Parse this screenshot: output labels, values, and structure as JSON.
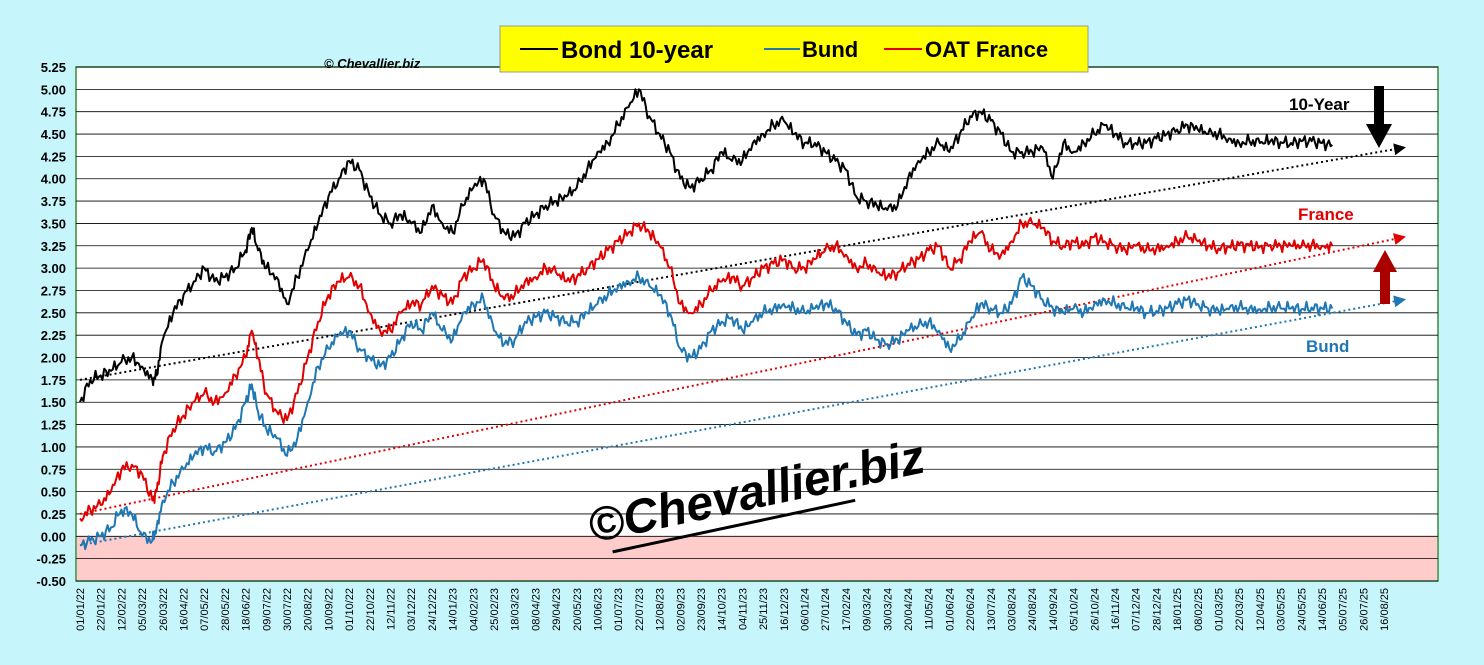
{
  "chart_data": {
    "type": "line",
    "copyright_small": "© Chevallier.biz",
    "watermark": "©Chevallier.biz",
    "legend": [
      {
        "label": "Bond 10-year",
        "color": "#000000"
      },
      {
        "label": "Bund",
        "color": "#1f77b4"
      },
      {
        "label": "OAT France",
        "color": "#e00000"
      }
    ],
    "annotations": {
      "ten_year": "10-Year",
      "france": "France",
      "bund": "Bund"
    },
    "ylim": [
      -0.5,
      5.25
    ],
    "y_ticks": [
      "5.25",
      "5.00",
      "4.75",
      "4.50",
      "4.25",
      "4.00",
      "3.75",
      "3.50",
      "3.25",
      "3.00",
      "2.75",
      "2.50",
      "2.25",
      "2.00",
      "1.75",
      "1.50",
      "1.25",
      "1.00",
      "0.75",
      "0.50",
      "0.25",
      "0.00",
      "-0.25",
      "-0.50"
    ],
    "x_ticks": [
      "01/01/22",
      "22/01/22",
      "12/02/22",
      "05/03/22",
      "26/03/22",
      "16/04/22",
      "07/05/22",
      "28/05/22",
      "18/06/22",
      "09/07/22",
      "30/07/22",
      "20/08/22",
      "10/09/22",
      "01/10/22",
      "22/10/22",
      "12/11/22",
      "03/12/22",
      "24/12/22",
      "14/01/23",
      "04/02/23",
      "25/02/23",
      "18/03/23",
      "08/04/23",
      "29/04/23",
      "20/05/23",
      "10/06/23",
      "01/07/23",
      "22/07/23",
      "12/08/23",
      "02/09/23",
      "23/09/23",
      "14/10/23",
      "04/11/23",
      "25/11/23",
      "16/12/23",
      "06/01/24",
      "27/01/24",
      "17/02/24",
      "09/03/24",
      "30/03/24",
      "20/04/24",
      "11/05/24",
      "01/06/24",
      "22/06/24",
      "13/07/24",
      "03/08/24",
      "24/08/24",
      "14/09/24",
      "05/10/24",
      "26/10/24",
      "16/11/24",
      "07/12/24",
      "28/12/24",
      "18/01/25",
      "08/02/25",
      "01/03/25",
      "22/03/25",
      "12/04/25",
      "03/05/25",
      "24/05/25",
      "14/06/25",
      "05/07/25",
      "26/07/25",
      "16/08/25"
    ],
    "series": [
      {
        "name": "Bond 10-year",
        "color": "#000000",
        "x": [
          0,
          0.5,
          1,
          1.5,
          2,
          2.5,
          3,
          3.5,
          3.7,
          4,
          4.5,
          5,
          5.5,
          6,
          6.5,
          7,
          7.5,
          8,
          8.3,
          8.6,
          9,
          9.5,
          10,
          10.5,
          11,
          11.5,
          12,
          12.5,
          13,
          13.5,
          14,
          14.5,
          15,
          15.5,
          16,
          16.5,
          17,
          17.5,
          18,
          18.5,
          19,
          19.5,
          20,
          20.5,
          21,
          21.5,
          22,
          22.5,
          23,
          23.5,
          24,
          24.5,
          25,
          25.5,
          26,
          26.5,
          27,
          27.5,
          28,
          28.5,
          29,
          29.5,
          30,
          30.5,
          31,
          31.5,
          32,
          32.5,
          33,
          33.5,
          34,
          34.5,
          35,
          35.5,
          36,
          36.5,
          37,
          37.5,
          38,
          38.5,
          39,
          39.5,
          40,
          40.5,
          41,
          41.5,
          42,
          42.5,
          43,
          43.5,
          44,
          44.5,
          45,
          45.5,
          46,
          46.5,
          47,
          47.5,
          48,
          48.5,
          49,
          49.5,
          50,
          50.5,
          51,
          51.5,
          52,
          52.5,
          53,
          53.5,
          54,
          54.5,
          55,
          55.5,
          56,
          56.5,
          57,
          57.5,
          58,
          58.5,
          59,
          59.5,
          60,
          60.5
        ],
        "y": [
          1.5,
          1.75,
          1.8,
          1.85,
          1.95,
          2.0,
          1.9,
          1.75,
          1.8,
          2.2,
          2.5,
          2.7,
          2.85,
          3.0,
          2.85,
          2.9,
          3.0,
          3.2,
          3.45,
          3.2,
          3.0,
          2.9,
          2.6,
          2.9,
          3.2,
          3.5,
          3.8,
          4.0,
          4.2,
          4.1,
          3.8,
          3.6,
          3.5,
          3.6,
          3.5,
          3.4,
          3.7,
          3.5,
          3.4,
          3.7,
          3.9,
          4.0,
          3.6,
          3.4,
          3.35,
          3.5,
          3.6,
          3.7,
          3.75,
          3.8,
          3.9,
          4.1,
          4.3,
          4.4,
          4.6,
          4.8,
          5.0,
          4.7,
          4.5,
          4.3,
          4.0,
          3.9,
          4.0,
          4.1,
          4.3,
          4.2,
          4.2,
          4.4,
          4.5,
          4.6,
          4.65,
          4.5,
          4.4,
          4.4,
          4.3,
          4.2,
          4.1,
          3.8,
          3.75,
          3.7,
          3.65,
          3.7,
          4.0,
          4.2,
          4.3,
          4.4,
          4.3,
          4.5,
          4.7,
          4.75,
          4.65,
          4.5,
          4.3,
          4.3,
          4.3,
          4.35,
          4.0,
          4.4,
          4.3,
          4.4,
          4.5,
          4.6,
          4.5,
          4.4,
          4.4,
          4.4,
          4.45,
          4.5,
          4.55,
          4.6,
          4.55,
          4.5,
          4.5,
          4.45,
          4.4,
          4.42,
          4.4,
          4.42,
          4.41,
          4.4,
          4.42,
          4.42,
          4.4,
          4.38
        ]
      },
      {
        "name": "OAT France",
        "color": "#e00000",
        "x": [
          0,
          0.5,
          1,
          1.5,
          2,
          2.5,
          3,
          3.5,
          3.7,
          4,
          4.5,
          5,
          5.5,
          6,
          6.5,
          7,
          7.5,
          8,
          8.3,
          8.6,
          9,
          9.5,
          10,
          10.5,
          11,
          11.5,
          12,
          12.5,
          13,
          13.5,
          14,
          14.5,
          15,
          15.5,
          16,
          16.5,
          17,
          17.5,
          18,
          18.5,
          19,
          19.5,
          20,
          20.5,
          21,
          21.5,
          22,
          22.5,
          23,
          23.5,
          24,
          24.5,
          25,
          25.5,
          26,
          26.5,
          27,
          27.5,
          28,
          28.5,
          29,
          29.5,
          30,
          30.5,
          31,
          31.5,
          32,
          32.5,
          33,
          33.5,
          34,
          34.5,
          35,
          35.5,
          36,
          36.5,
          37,
          37.5,
          38,
          38.5,
          39,
          39.5,
          40,
          40.5,
          41,
          41.5,
          42,
          42.5,
          43,
          43.5,
          44,
          44.5,
          45,
          45.5,
          46,
          46.5,
          47,
          47.5,
          48,
          48.5,
          49,
          49.5,
          50,
          50.5,
          51,
          51.5,
          52,
          52.5,
          53,
          53.5,
          54,
          54.5,
          55,
          55.5,
          56,
          56.5,
          57,
          57.5,
          58,
          58.5,
          59,
          59.5,
          60,
          60.5
        ],
        "y": [
          0.2,
          0.3,
          0.35,
          0.5,
          0.75,
          0.8,
          0.7,
          0.4,
          0.5,
          0.9,
          1.2,
          1.35,
          1.5,
          1.6,
          1.5,
          1.6,
          1.8,
          2.0,
          2.3,
          2.0,
          1.6,
          1.4,
          1.3,
          1.6,
          2.0,
          2.4,
          2.7,
          2.85,
          2.9,
          2.8,
          2.5,
          2.3,
          2.3,
          2.5,
          2.6,
          2.6,
          2.8,
          2.7,
          2.6,
          2.9,
          3.0,
          3.1,
          2.8,
          2.65,
          2.7,
          2.85,
          2.9,
          3.0,
          2.95,
          2.85,
          2.9,
          3.0,
          3.1,
          3.2,
          3.3,
          3.4,
          3.5,
          3.4,
          3.25,
          3.0,
          2.6,
          2.5,
          2.6,
          2.75,
          2.85,
          2.9,
          2.8,
          2.9,
          3.0,
          3.05,
          3.1,
          3.0,
          3.0,
          3.1,
          3.2,
          3.25,
          3.15,
          3.0,
          3.05,
          2.95,
          2.9,
          2.95,
          3.05,
          3.1,
          3.2,
          3.25,
          3.0,
          3.1,
          3.3,
          3.4,
          3.2,
          3.15,
          3.3,
          3.5,
          3.5,
          3.45,
          3.3,
          3.25,
          3.3,
          3.25,
          3.35,
          3.3,
          3.25,
          3.2,
          3.25,
          3.2,
          3.22,
          3.25,
          3.3,
          3.35,
          3.3,
          3.25,
          3.22,
          3.24,
          3.26,
          3.25,
          3.24,
          3.26,
          3.25,
          3.25,
          3.24,
          3.26,
          3.25,
          3.25
        ]
      },
      {
        "name": "Bund",
        "color": "#1f77b4",
        "x": [
          0,
          0.5,
          1,
          1.5,
          2,
          2.5,
          3,
          3.5,
          3.7,
          4,
          4.5,
          5,
          5.5,
          6,
          6.5,
          7,
          7.5,
          8,
          8.3,
          8.6,
          9,
          9.5,
          10,
          10.5,
          11,
          11.5,
          12,
          12.5,
          13,
          13.5,
          14,
          14.5,
          15,
          15.5,
          16,
          16.5,
          17,
          17.5,
          18,
          18.5,
          19,
          19.5,
          20,
          20.5,
          21,
          21.5,
          22,
          22.5,
          23,
          23.5,
          24,
          24.5,
          25,
          25.5,
          26,
          26.5,
          27,
          27.5,
          28,
          28.5,
          29,
          29.5,
          30,
          30.5,
          31,
          31.5,
          32,
          32.5,
          33,
          33.5,
          34,
          34.5,
          35,
          35.5,
          36,
          36.5,
          37,
          37.5,
          38,
          38.5,
          39,
          39.5,
          40,
          40.5,
          41,
          41.5,
          42,
          42.5,
          43,
          43.5,
          44,
          44.5,
          45,
          45.5,
          46,
          46.5,
          47,
          47.5,
          48,
          48.5,
          49,
          49.5,
          50,
          50.5,
          51,
          51.5,
          52,
          52.5,
          53,
          53.5,
          54,
          54.5,
          55,
          55.5,
          56,
          56.5,
          57,
          57.5,
          58,
          58.5,
          59,
          59.5,
          60,
          60.5
        ],
        "y": [
          -0.1,
          -0.05,
          0.0,
          0.1,
          0.3,
          0.25,
          0.0,
          -0.05,
          0.1,
          0.4,
          0.6,
          0.75,
          0.9,
          1.0,
          0.95,
          1.05,
          1.2,
          1.5,
          1.7,
          1.4,
          1.2,
          1.1,
          0.9,
          1.1,
          1.5,
          1.9,
          2.1,
          2.25,
          2.3,
          2.1,
          2.0,
          1.9,
          2.0,
          2.2,
          2.4,
          2.3,
          2.5,
          2.3,
          2.2,
          2.5,
          2.6,
          2.65,
          2.3,
          2.15,
          2.2,
          2.4,
          2.45,
          2.5,
          2.45,
          2.4,
          2.4,
          2.5,
          2.6,
          2.7,
          2.8,
          2.85,
          2.9,
          2.8,
          2.7,
          2.5,
          2.1,
          2.0,
          2.1,
          2.3,
          2.4,
          2.45,
          2.3,
          2.4,
          2.5,
          2.55,
          2.6,
          2.55,
          2.5,
          2.55,
          2.6,
          2.55,
          2.4,
          2.25,
          2.3,
          2.2,
          2.15,
          2.2,
          2.3,
          2.35,
          2.4,
          2.3,
          2.1,
          2.2,
          2.4,
          2.6,
          2.55,
          2.5,
          2.6,
          2.9,
          2.8,
          2.65,
          2.55,
          2.5,
          2.55,
          2.5,
          2.6,
          2.65,
          2.6,
          2.55,
          2.55,
          2.5,
          2.52,
          2.55,
          2.6,
          2.65,
          2.6,
          2.55,
          2.52,
          2.54,
          2.56,
          2.55,
          2.54,
          2.56,
          2.55,
          2.55,
          2.54,
          2.56,
          2.55,
          2.55
        ]
      }
    ],
    "trendlines": [
      {
        "name": "10-Year trend",
        "color": "#000000",
        "x": [
          0,
          64
        ],
        "y": [
          1.75,
          4.35
        ]
      },
      {
        "name": "France trend",
        "color": "#e00000",
        "x": [
          0,
          64
        ],
        "y": [
          0.25,
          3.35
        ]
      },
      {
        "name": "Bund trend",
        "color": "#1f77b4",
        "x": [
          0,
          64
        ],
        "y": [
          -0.1,
          2.65
        ]
      }
    ],
    "negative_zone_color": "#ffcccc",
    "grid": true
  }
}
